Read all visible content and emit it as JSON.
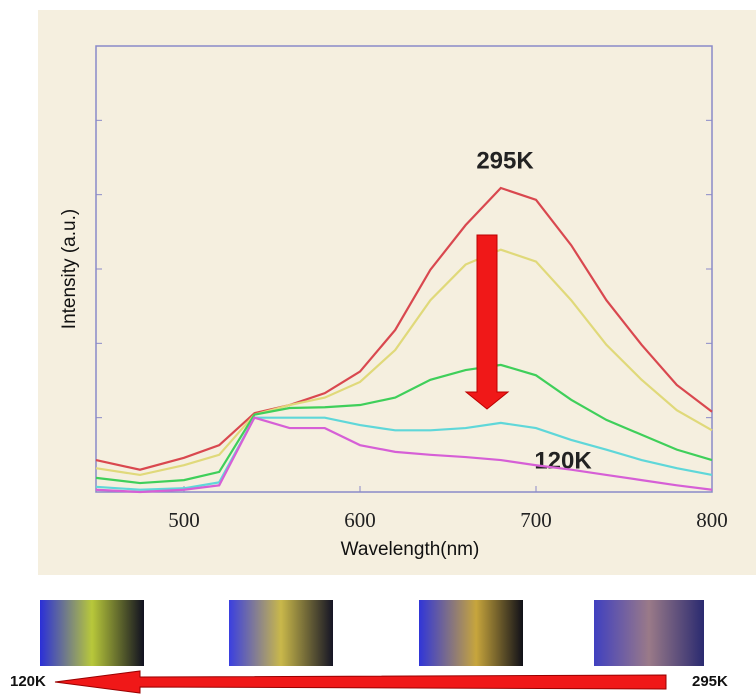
{
  "chart_data": {
    "type": "line",
    "x_label": "Wavelength(nm)",
    "y_label": "Intensity (a.u.)",
    "x": [
      450,
      475,
      500,
      520,
      540,
      560,
      580,
      600,
      620,
      640,
      660,
      680,
      700,
      720,
      740,
      760,
      780,
      800
    ],
    "series": [
      {
        "color": "#d9484f",
        "values": [
          0.43,
          0.3,
          0.46,
          0.63,
          1.06,
          1.17,
          1.33,
          1.62,
          2.18,
          2.99,
          3.59,
          4.09,
          3.93,
          3.32,
          2.58,
          1.98,
          1.44,
          1.08
        ]
      },
      {
        "color": "#e0d97a",
        "values": [
          0.32,
          0.23,
          0.36,
          0.5,
          1.04,
          1.17,
          1.27,
          1.48,
          1.91,
          2.58,
          3.06,
          3.26,
          3.1,
          2.58,
          1.98,
          1.51,
          1.1,
          0.83
        ]
      },
      {
        "color": "#3fcf5a",
        "values": [
          0.19,
          0.12,
          0.16,
          0.27,
          1.04,
          1.13,
          1.14,
          1.17,
          1.27,
          1.51,
          1.64,
          1.71,
          1.57,
          1.24,
          0.97,
          0.77,
          0.57,
          0.43
        ]
      },
      {
        "color": "#5fd7d9",
        "values": [
          0.07,
          0.03,
          0.05,
          0.13,
          1.0,
          1.0,
          1.0,
          0.9,
          0.83,
          0.83,
          0.86,
          0.93,
          0.86,
          0.7,
          0.57,
          0.43,
          0.32,
          0.23
        ]
      },
      {
        "color": "#d65fd6",
        "values": [
          0.03,
          0,
          0.03,
          0.09,
          1.0,
          0.86,
          0.86,
          0.63,
          0.54,
          0.5,
          0.47,
          0.43,
          0.36,
          0.3,
          0.23,
          0.16,
          0.09,
          0.03
        ]
      }
    ],
    "xlim": [
      450,
      800
    ],
    "xticks": [
      500,
      600,
      700,
      800
    ],
    "ylim": [
      0,
      6
    ],
    "yticks": [
      1,
      2,
      3,
      4,
      5
    ],
    "annotations": [
      "295K",
      "120K"
    ]
  },
  "strip": {
    "start_label": "120K",
    "end_label": "295K"
  }
}
